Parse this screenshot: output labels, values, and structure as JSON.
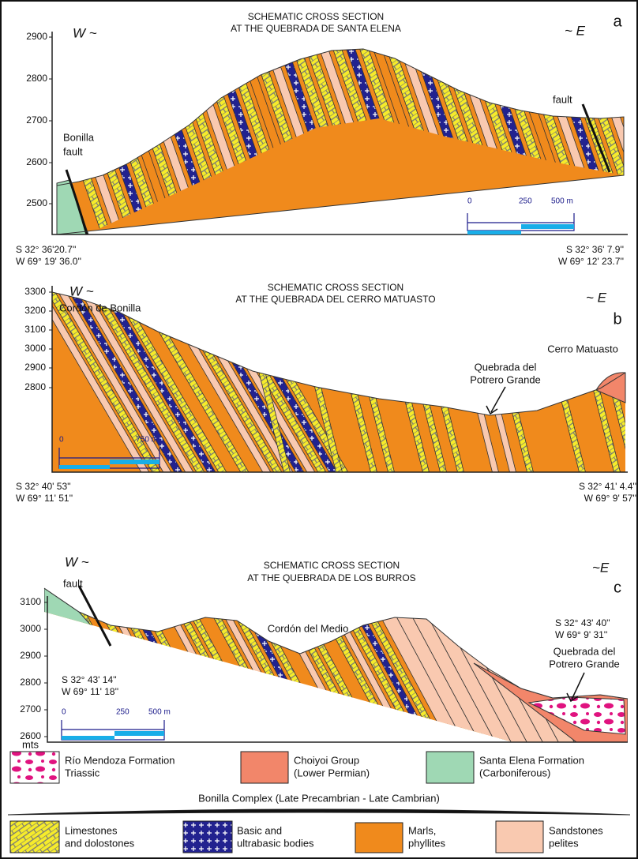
{
  "panels": [
    {
      "title": [
        "SCHEMATIC CROSS SECTION",
        "AT THE QUEBRADA DE SANTA ELENA"
      ],
      "west": "W ~",
      "east": "~ E",
      "letter": "a",
      "elevations": [
        2900,
        2800,
        2700,
        2600,
        2500
      ],
      "labels": [
        "Bonilla",
        "fault",
        "fault"
      ],
      "scale": [
        0,
        250,
        "500 m"
      ],
      "coords_west": [
        "S 32° 36'20.7''",
        "W 69° 19' 36.0''"
      ],
      "coords_east": [
        "S 32° 36' 7.9''",
        "W 69° 12' 23.7''"
      ]
    },
    {
      "title": [
        "SCHEMATIC CROSS SECTION",
        "AT THE QUEBRADA DEL CERRO MATUASTO"
      ],
      "west": "W ~",
      "east": "~ E",
      "letter": "b",
      "elevations": [
        3300,
        3200,
        3100,
        3000,
        2900,
        2800
      ],
      "labels": [
        "Cordón de Bonilla",
        "Quebrada del",
        "Potrero Grande",
        "Cerro Matuasto"
      ],
      "scale": [
        0,
        "750 m"
      ],
      "coords_west": [
        "S 32° 40' 53''",
        "W 69° 11' 51''"
      ],
      "coords_east": [
        "S 32° 41' 4.4''",
        "W 69° 9' 57''"
      ]
    },
    {
      "title": [
        "SCHEMATIC CROSS SECTION",
        "AT THE QUEBRADA DE LOS BURROS"
      ],
      "west": "W ~",
      "east": "~E",
      "letter": "c",
      "elevations": [
        3100,
        3000,
        2900,
        2800,
        2700,
        2600
      ],
      "labels": [
        "fault",
        "Cordón del Medio",
        "Quebrada del",
        "Potrero Grande",
        "mts"
      ],
      "scale": [
        0,
        250,
        "500 m"
      ],
      "coords_west": [
        "S 32° 43' 14''",
        "W 69° 11' 18''"
      ],
      "coords_east": [
        "S 32° 43' 40''",
        "W 69° 9' 31''"
      ]
    }
  ],
  "legend": {
    "rio_mendoza": [
      "Río Mendoza Formation",
      "Triassic"
    ],
    "choiyoi": [
      "Choiyoi Group",
      "(Lower Permian)"
    ],
    "santa_elena": [
      "Santa Elena Formation",
      "(Carboniferous)"
    ],
    "bonilla": "Bonilla Complex (Late Precambrian - Late Cambrian)",
    "limestones": [
      "Limestones",
      "and dolostones"
    ],
    "basic": [
      "Basic and",
      "ultrabasic bodies"
    ],
    "marls": [
      "Marls,",
      "phyllites"
    ],
    "sandstones": [
      "Sandstones",
      "pelites"
    ]
  }
}
